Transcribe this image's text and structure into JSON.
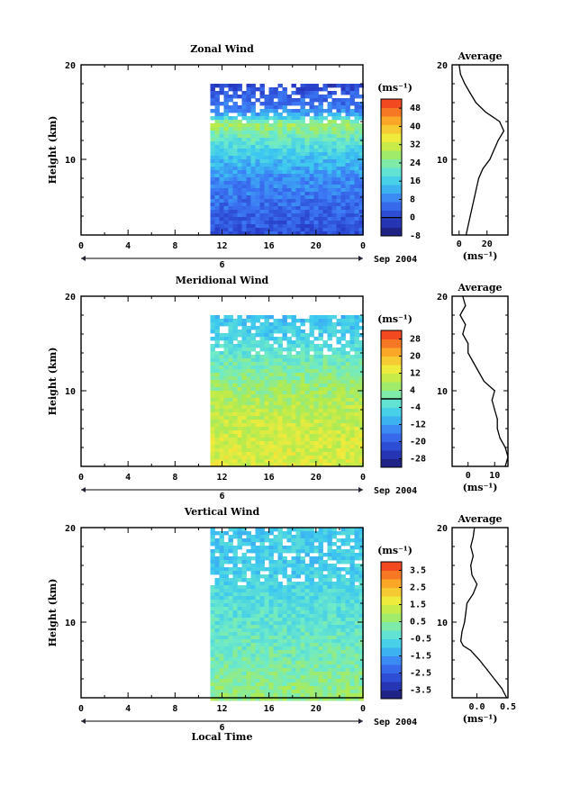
{
  "chart_data": [
    {
      "type": "heatmap",
      "title": "Zonal Wind",
      "ylabel": "Height (km)",
      "ylim": [
        2,
        20
      ],
      "y_ticks": [
        "20",
        "10"
      ],
      "xlim": [
        0,
        24
      ],
      "x_ticks": [
        "0",
        "4",
        "8",
        "12",
        "16",
        "20",
        "0"
      ],
      "date_label": "6",
      "month_label": "Sep 2004",
      "data_x_range": [
        11,
        24
      ],
      "data_y_range": [
        2,
        18
      ],
      "colorbar": {
        "unit": "(ms⁻¹)",
        "tick_labels": [
          "48",
          "40",
          "32",
          "24",
          "16",
          "8",
          "0",
          "-8"
        ],
        "range": [
          -8,
          52
        ],
        "zero_line": 0
      },
      "profile_by_height": [
        {
          "h": 2,
          "v": 2
        },
        {
          "h": 5,
          "v": 5
        },
        {
          "h": 8,
          "v": 9
        },
        {
          "h": 10,
          "v": 14
        },
        {
          "h": 12,
          "v": 20
        },
        {
          "h": 14,
          "v": 28
        },
        {
          "h": 15,
          "v": 10
        },
        {
          "h": 16,
          "v": 6
        },
        {
          "h": 17,
          "v": 4
        },
        {
          "h": 18,
          "v": 0
        }
      ],
      "average": {
        "title": "Average",
        "xlabel": "(ms⁻¹)",
        "x_ticks": [
          "0",
          "20"
        ],
        "xlim": [
          -5,
          35
        ],
        "points": [
          {
            "h": 2,
            "v": 5
          },
          {
            "h": 4,
            "v": 8
          },
          {
            "h": 6,
            "v": 11
          },
          {
            "h": 8,
            "v": 14
          },
          {
            "h": 9,
            "v": 17
          },
          {
            "h": 10,
            "v": 22
          },
          {
            "h": 11,
            "v": 25
          },
          {
            "h": 12,
            "v": 28
          },
          {
            "h": 13,
            "v": 32
          },
          {
            "h": 14,
            "v": 29
          },
          {
            "h": 15,
            "v": 19
          },
          {
            "h": 16,
            "v": 12
          },
          {
            "h": 17,
            "v": 8
          },
          {
            "h": 18,
            "v": 4
          },
          {
            "h": 19,
            "v": 1
          },
          {
            "h": 20,
            "v": 0
          }
        ]
      }
    },
    {
      "type": "heatmap",
      "title": "Meridional Wind",
      "ylabel": "Height (km)",
      "ylim": [
        2,
        20
      ],
      "y_ticks": [
        "20",
        "10"
      ],
      "xlim": [
        0,
        24
      ],
      "x_ticks": [
        "0",
        "4",
        "8",
        "12",
        "16",
        "20",
        "0"
      ],
      "date_label": "6",
      "month_label": "Sep 2004",
      "data_x_range": [
        11,
        24
      ],
      "data_y_range": [
        2,
        18
      ],
      "colorbar": {
        "unit": "(ms⁻¹)",
        "tick_labels": [
          "28",
          "20",
          "12",
          "4",
          "-4",
          "-12",
          "-20",
          "-28"
        ],
        "range": [
          -32,
          32
        ],
        "zero_line": 0
      },
      "profile_by_height": [
        {
          "h": 2,
          "v": 12
        },
        {
          "h": 5,
          "v": 11
        },
        {
          "h": 8,
          "v": 9
        },
        {
          "h": 10,
          "v": 6
        },
        {
          "h": 12,
          "v": 3
        },
        {
          "h": 14,
          "v": -1
        },
        {
          "h": 16,
          "v": -6
        },
        {
          "h": 18,
          "v": -8
        }
      ],
      "average": {
        "title": "Average",
        "xlabel": "(ms⁻¹)",
        "x_ticks": [
          "0",
          "10"
        ],
        "xlim": [
          -6,
          15
        ],
        "points": [
          {
            "h": 2,
            "v": 14
          },
          {
            "h": 3,
            "v": 15
          },
          {
            "h": 4,
            "v": 14
          },
          {
            "h": 5,
            "v": 12
          },
          {
            "h": 6,
            "v": 11
          },
          {
            "h": 7,
            "v": 11
          },
          {
            "h": 8,
            "v": 10
          },
          {
            "h": 9,
            "v": 9
          },
          {
            "h": 10,
            "v": 10
          },
          {
            "h": 11,
            "v": 6
          },
          {
            "h": 12,
            "v": 4
          },
          {
            "h": 13,
            "v": 2
          },
          {
            "h": 14,
            "v": 0
          },
          {
            "h": 15,
            "v": 0
          },
          {
            "h": 16,
            "v": -2
          },
          {
            "h": 17,
            "v": -1
          },
          {
            "h": 18,
            "v": -3
          },
          {
            "h": 19,
            "v": -1
          },
          {
            "h": 20,
            "v": -2
          }
        ]
      }
    },
    {
      "type": "heatmap",
      "title": "Vertical Wind",
      "ylabel": "Height (km)",
      "ylim": [
        2,
        20
      ],
      "y_ticks": [
        "20",
        "10"
      ],
      "xlim": [
        0,
        24
      ],
      "x_ticks": [
        "0",
        "4",
        "8",
        "12",
        "16",
        "20",
        "0"
      ],
      "date_label": "6",
      "month_label": "Sep 2004",
      "xlabel": "Local Time",
      "data_x_range": [
        11,
        24
      ],
      "data_y_range": [
        2,
        20
      ],
      "colorbar": {
        "unit": "(ms⁻¹)",
        "tick_labels": [
          "3.5",
          "2.5",
          "1.5",
          "0.5",
          "-0.5",
          "-1.5",
          "-2.5",
          "-3.5"
        ],
        "range": [
          -4,
          4
        ]
      },
      "profile_by_height": [
        {
          "h": 2,
          "v": 0.6
        },
        {
          "h": 5,
          "v": 0.3
        },
        {
          "h": 8,
          "v": 0.0
        },
        {
          "h": 12,
          "v": -0.4
        },
        {
          "h": 16,
          "v": -0.8
        },
        {
          "h": 20,
          "v": -0.8
        }
      ],
      "average": {
        "title": "Average",
        "xlabel": "(ms⁻¹)",
        "x_ticks": [
          "0.0",
          "0.5"
        ],
        "xlim": [
          -0.4,
          0.5
        ],
        "points": [
          {
            "h": 2,
            "v": 0.48
          },
          {
            "h": 3,
            "v": 0.4
          },
          {
            "h": 4,
            "v": 0.28
          },
          {
            "h": 5,
            "v": 0.16
          },
          {
            "h": 6,
            "v": 0.04
          },
          {
            "h": 7,
            "v": -0.1
          },
          {
            "h": 7.5,
            "v": -0.22
          },
          {
            "h": 8,
            "v": -0.26
          },
          {
            "h": 9,
            "v": -0.24
          },
          {
            "h": 10,
            "v": -0.2
          },
          {
            "h": 11,
            "v": -0.18
          },
          {
            "h": 12,
            "v": -0.16
          },
          {
            "h": 13,
            "v": -0.06
          },
          {
            "h": 14,
            "v": 0.0
          },
          {
            "h": 15,
            "v": -0.08
          },
          {
            "h": 16,
            "v": -0.1
          },
          {
            "h": 17,
            "v": -0.06
          },
          {
            "h": 18,
            "v": -0.1
          },
          {
            "h": 19,
            "v": -0.06
          },
          {
            "h": 20,
            "v": -0.04
          }
        ]
      }
    }
  ]
}
